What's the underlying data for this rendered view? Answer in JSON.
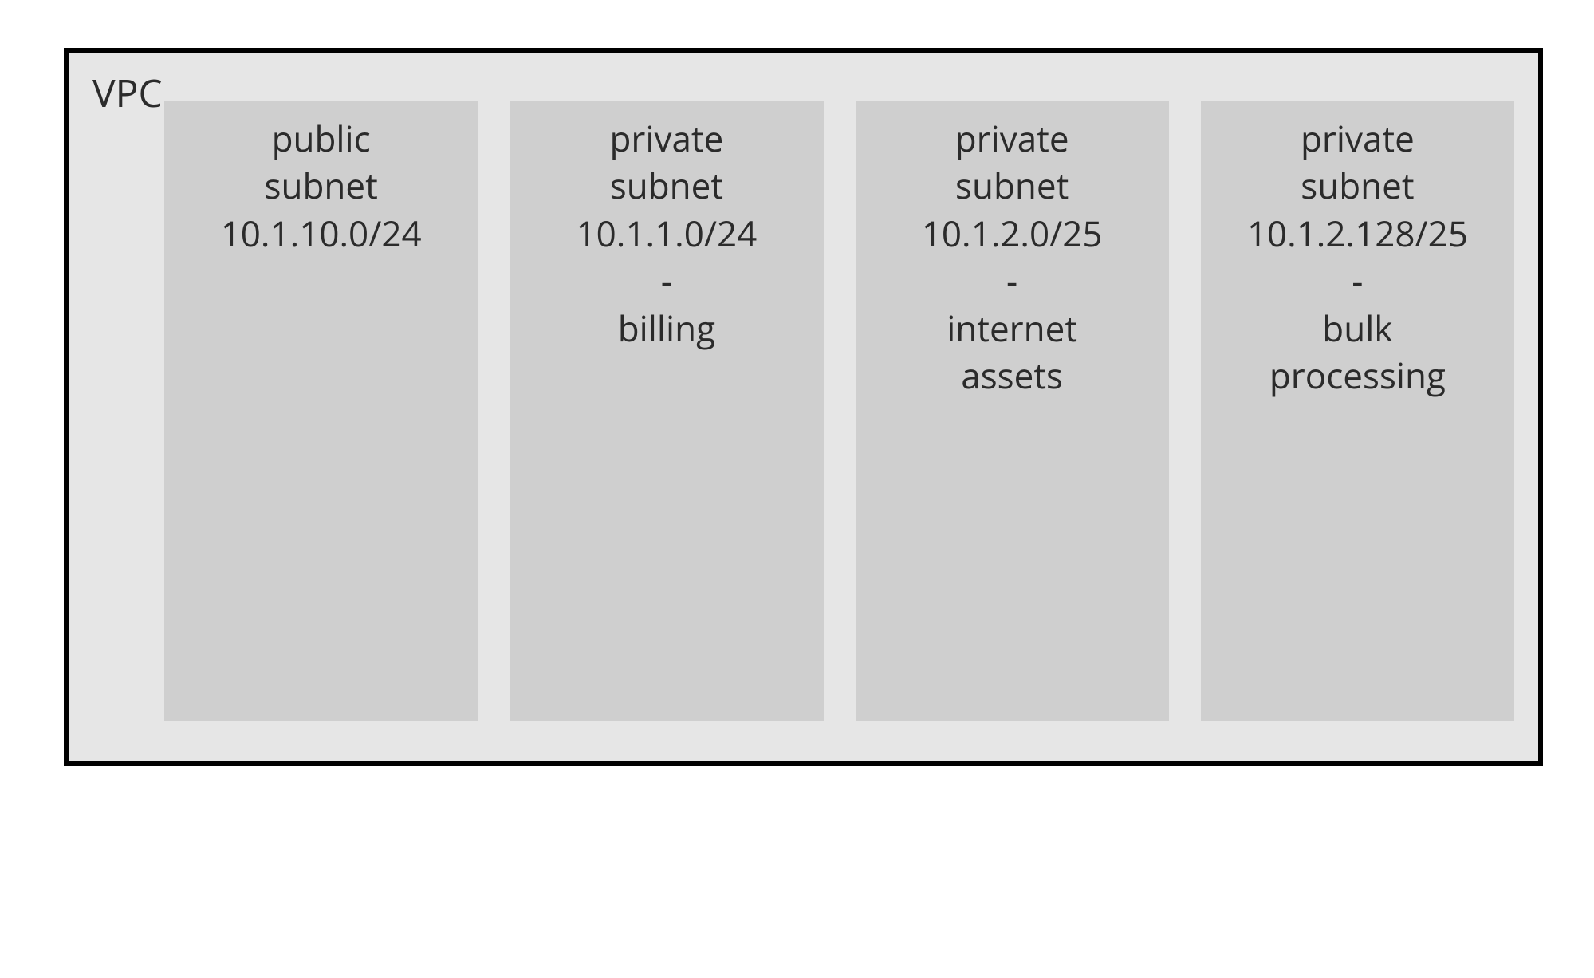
{
  "diagram": {
    "type": "infographic",
    "background_color": "#ffffff",
    "vpc": {
      "label": "VPC",
      "background_color": "#e6e6e6",
      "border_color": "#000000",
      "border_width": 6,
      "label_fontsize": 48,
      "label_color": "#2b2b2b"
    },
    "subnet_style": {
      "background_color": "#cfcfcf",
      "text_color": "#2b2b2b",
      "fontsize": 44,
      "gap": 40
    },
    "subnets": [
      {
        "lines": [
          "public",
          "subnet",
          "10.1.10.0/24"
        ]
      },
      {
        "lines": [
          "private",
          "subnet",
          "10.1.1.0/24",
          "-",
          "billing"
        ]
      },
      {
        "lines": [
          "private",
          "subnet",
          "10.1.2.0/25",
          "-",
          "internet",
          "assets"
        ]
      },
      {
        "lines": [
          "private",
          "subnet",
          "10.1.2.128/25",
          "-",
          "bulk",
          "processing"
        ]
      }
    ]
  }
}
